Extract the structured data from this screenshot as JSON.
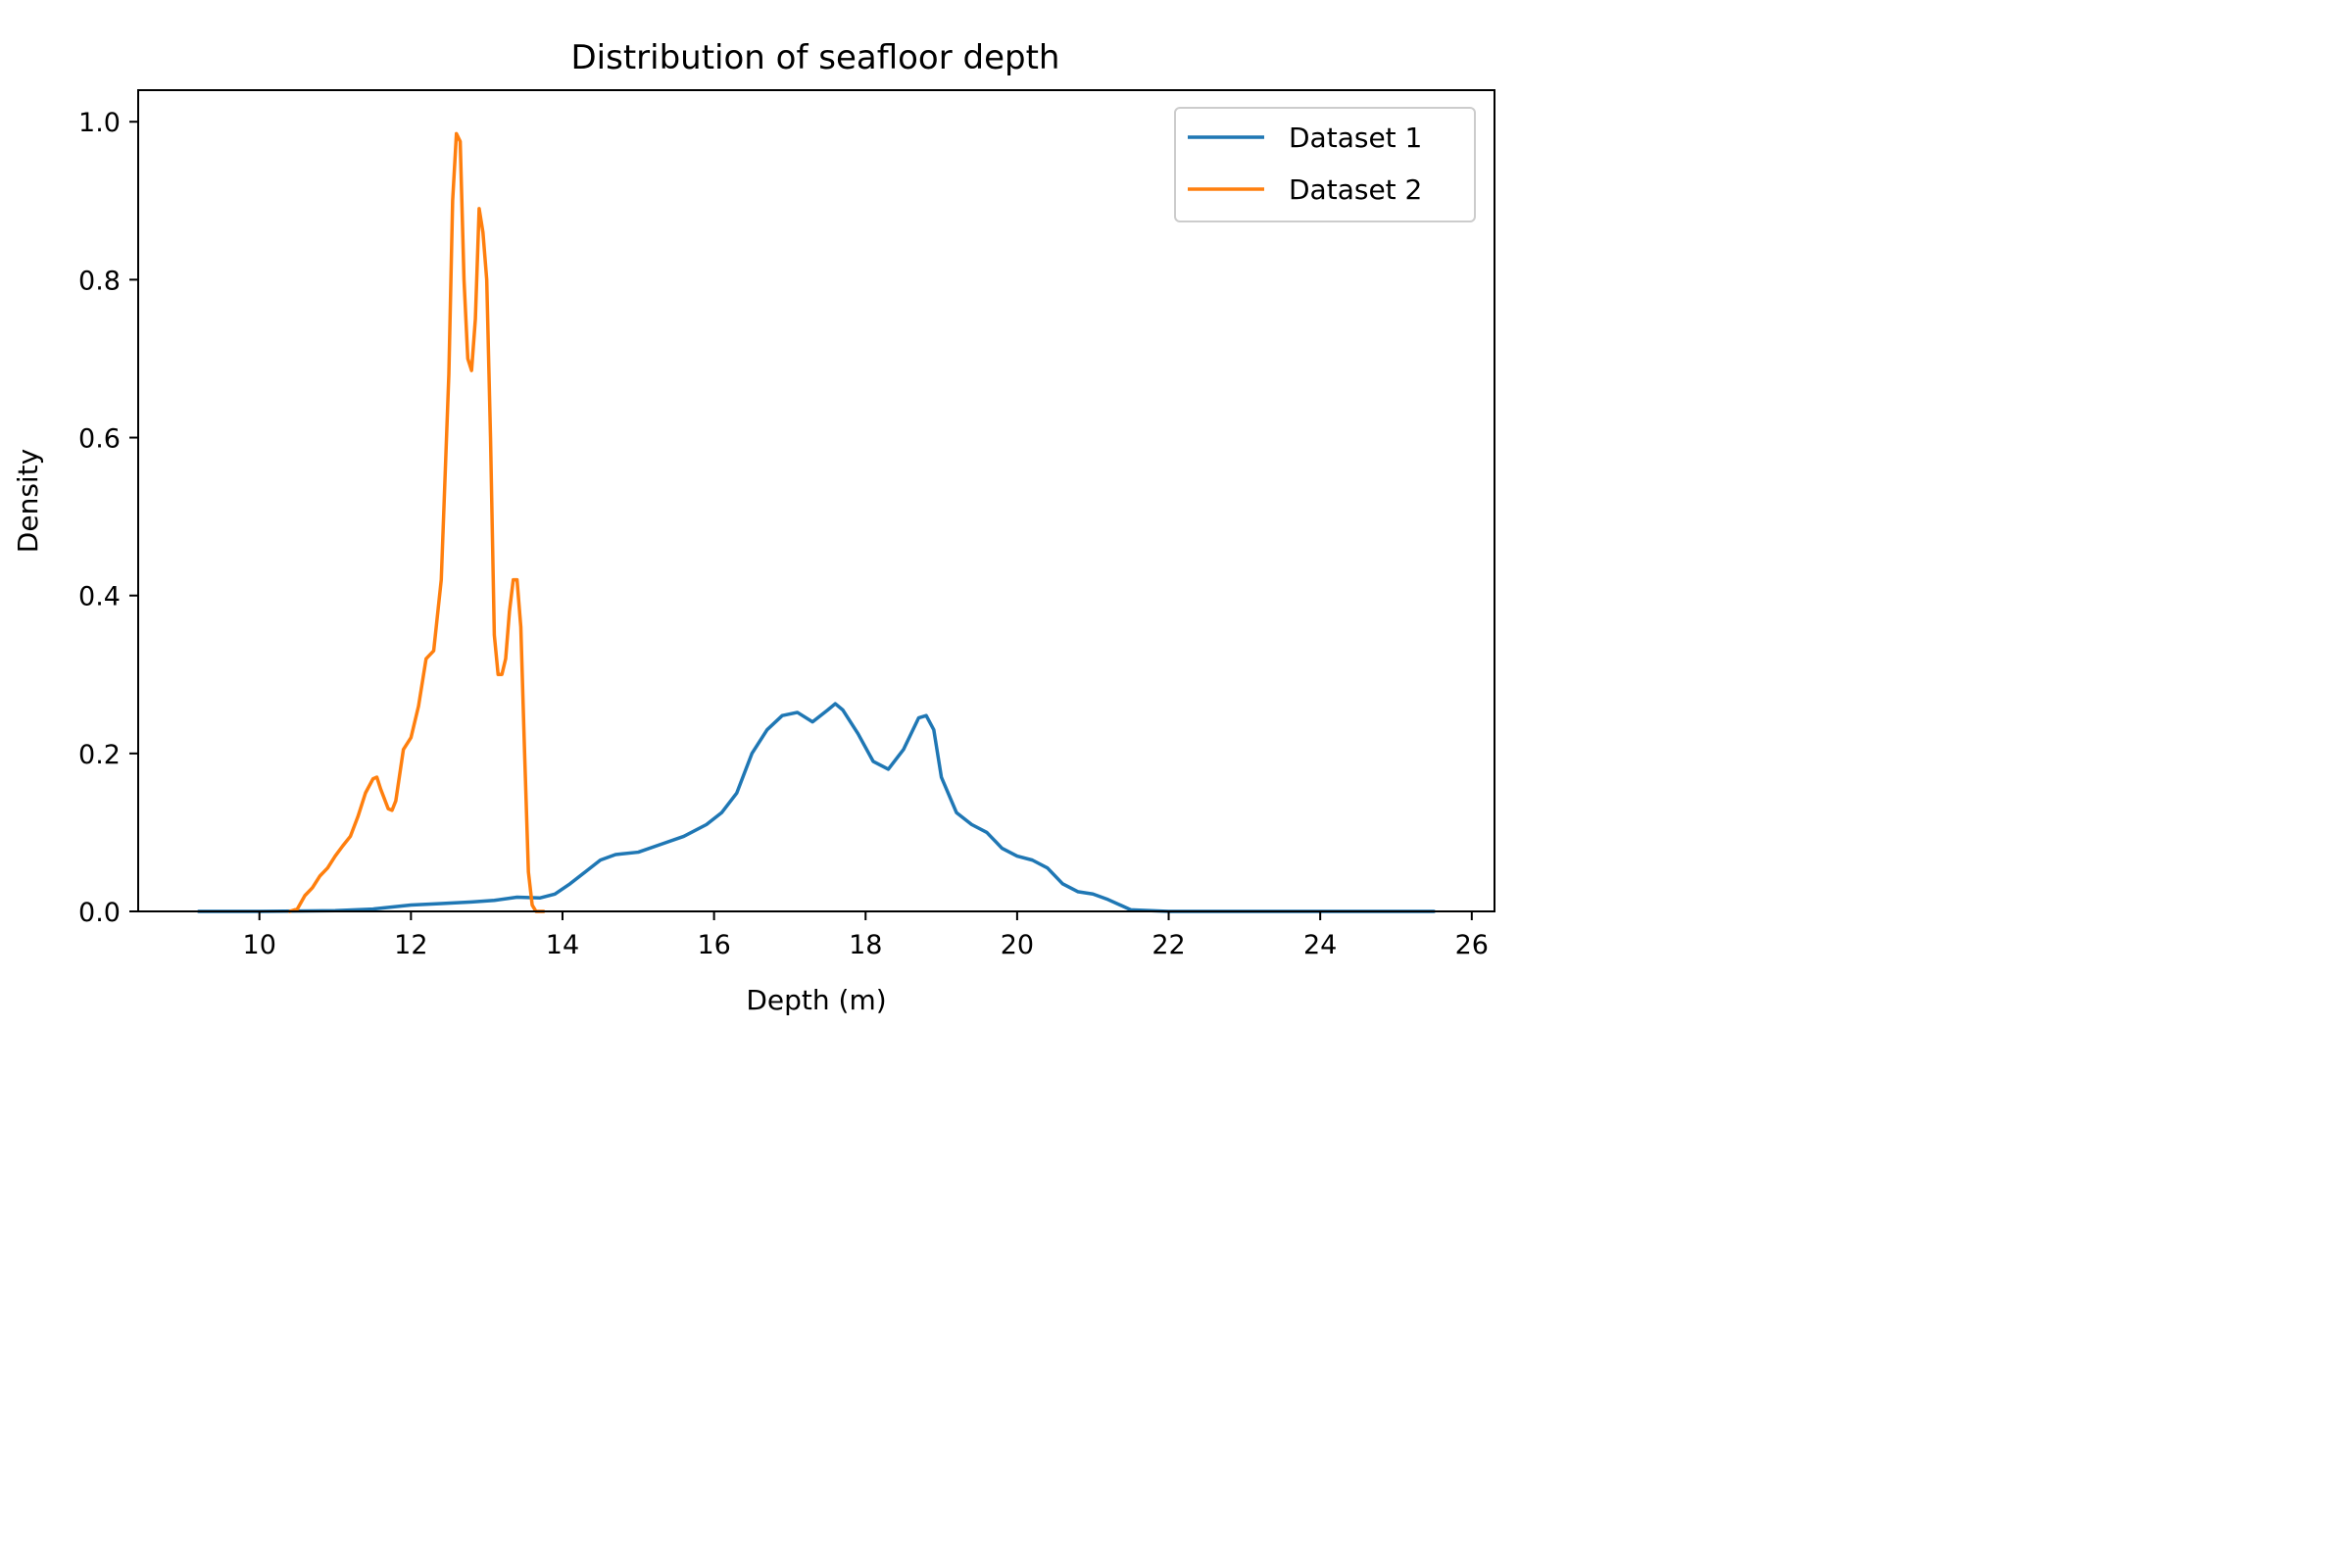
{
  "chart_data": {
    "type": "line",
    "title": "Distribution of seafloor depth",
    "xlabel": "Depth (m)",
    "ylabel": "Density",
    "xlim": [
      8.4,
      26.3
    ],
    "ylim": [
      0.0,
      1.04
    ],
    "xticks": [
      10,
      12,
      14,
      16,
      18,
      20,
      22,
      24,
      26
    ],
    "yticks": [
      0.0,
      0.2,
      0.4,
      0.6,
      0.8,
      1.0
    ],
    "xtick_labels": [
      "10",
      "12",
      "14",
      "16",
      "18",
      "20",
      "22",
      "24",
      "26"
    ],
    "ytick_labels": [
      "0.0",
      "0.2",
      "0.4",
      "0.6",
      "0.8",
      "1.0"
    ],
    "grid": false,
    "legend_position": "top-right",
    "series": [
      {
        "name": "Dataset 1",
        "color": "#1f77b4",
        "x": [
          9.2,
          10.0,
          11.0,
          11.5,
          12.0,
          12.4,
          12.8,
          13.1,
          13.4,
          13.7,
          13.9,
          14.1,
          14.3,
          14.5,
          14.7,
          15.0,
          15.3,
          15.6,
          15.9,
          16.1,
          16.3,
          16.5,
          16.7,
          16.9,
          17.1,
          17.3,
          17.5,
          17.6,
          17.7,
          17.9,
          18.1,
          18.3,
          18.5,
          18.7,
          18.8,
          18.9,
          19.0,
          19.2,
          19.4,
          19.6,
          19.8,
          20.0,
          20.2,
          20.4,
          20.6,
          20.8,
          21.0,
          21.2,
          21.5,
          22.0,
          23.0,
          24.0,
          25.5
        ],
        "y": [
          0.0,
          0.0,
          0.001,
          0.003,
          0.008,
          0.01,
          0.012,
          0.014,
          0.018,
          0.017,
          0.022,
          0.035,
          0.05,
          0.065,
          0.072,
          0.075,
          0.085,
          0.095,
          0.11,
          0.125,
          0.15,
          0.2,
          0.23,
          0.248,
          0.252,
          0.24,
          0.255,
          0.263,
          0.255,
          0.225,
          0.19,
          0.18,
          0.205,
          0.245,
          0.248,
          0.23,
          0.17,
          0.125,
          0.11,
          0.1,
          0.08,
          0.07,
          0.065,
          0.055,
          0.035,
          0.025,
          0.022,
          0.015,
          0.002,
          0.0,
          0.0,
          0.0,
          0.0
        ]
      },
      {
        "name": "Dataset 2",
        "color": "#ff7f0e",
        "x": [
          10.4,
          10.5,
          10.6,
          10.7,
          10.8,
          10.9,
          11.0,
          11.1,
          11.2,
          11.3,
          11.4,
          11.5,
          11.55,
          11.6,
          11.7,
          11.75,
          11.8,
          11.9,
          12.0,
          12.1,
          12.2,
          12.3,
          12.4,
          12.5,
          12.55,
          12.6,
          12.65,
          12.7,
          12.75,
          12.8,
          12.85,
          12.9,
          12.95,
          13.0,
          13.05,
          13.1,
          13.15,
          13.2,
          13.25,
          13.3,
          13.35,
          13.4,
          13.45,
          13.5,
          13.55,
          13.6,
          13.65,
          13.7,
          13.75
        ],
        "y": [
          0.0,
          0.003,
          0.02,
          0.03,
          0.045,
          0.055,
          0.07,
          0.083,
          0.095,
          0.12,
          0.15,
          0.168,
          0.17,
          0.155,
          0.13,
          0.128,
          0.14,
          0.205,
          0.22,
          0.26,
          0.32,
          0.33,
          0.42,
          0.68,
          0.9,
          0.985,
          0.975,
          0.8,
          0.7,
          0.685,
          0.75,
          0.89,
          0.86,
          0.8,
          0.6,
          0.35,
          0.3,
          0.3,
          0.32,
          0.38,
          0.42,
          0.42,
          0.36,
          0.2,
          0.05,
          0.008,
          0.0,
          0.0,
          0.0
        ]
      }
    ]
  }
}
